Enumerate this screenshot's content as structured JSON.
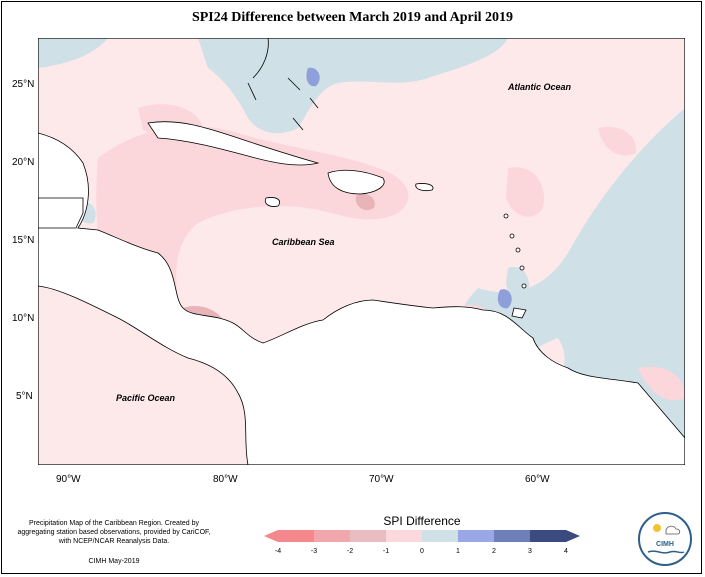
{
  "title": "SPI24 Difference between March 2019 and April 2019",
  "map": {
    "ocean_labels": {
      "atlantic": "Atlantic Ocean",
      "caribbean": "Caribbean Sea",
      "pacific": "Pacific Ocean"
    },
    "lat_ticks": [
      "25°N",
      "20°N",
      "15°N",
      "10°N",
      "5°N"
    ],
    "lon_ticks": [
      "90°W",
      "80°W",
      "70°W",
      "60°W"
    ],
    "colors": {
      "land": "#ffffff",
      "near_zero": "#fde9ea",
      "neg_1": "#fbd7dc",
      "neg_2": "#e8b4b8",
      "pos_1": "#cfe0e6",
      "pos_2": "#8e9fdc"
    }
  },
  "footer": {
    "note": "Precipitation Map of the Caribbean Region. Created by aggregating station based observations, provided by CariCOF, with NCEP/NCAR Reanalysis Data.",
    "date": "CIMH May-2019"
  },
  "legend": {
    "title": "SPI Difference",
    "labels": [
      "-4",
      "-3",
      "-2",
      "-1",
      "0",
      "1",
      "2",
      "3",
      "4"
    ],
    "colors": [
      "#f4888c",
      "#f1a8ac",
      "#e8bcc0",
      "#fbd8dc",
      "#fde9ea",
      "#cfe0e6",
      "#9aa7e6",
      "#6f7fb8",
      "#3b4a7f"
    ]
  },
  "logo": {
    "name": "CIMH"
  }
}
